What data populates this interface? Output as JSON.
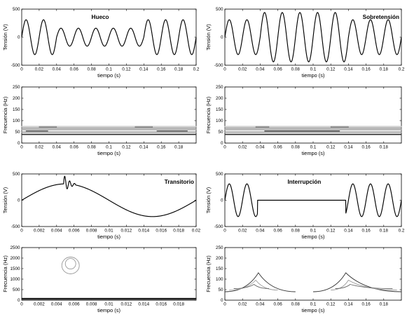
{
  "chart_data": [
    {
      "id": "hueco-time",
      "type": "line",
      "title": "Hueco",
      "xlabel": "tiempo (s)",
      "ylabel": "Tensión (V)",
      "xlim": [
        0,
        0.2
      ],
      "ylim": [
        -500,
        500
      ],
      "xticks": [
        "0",
        "0.02",
        "0.04",
        "0.06",
        "0.08",
        "0.1",
        "0.12",
        "0.14",
        "0.16",
        "0.18",
        "0.2"
      ],
      "yticks": [
        "-500",
        "0",
        "500"
      ],
      "series": [
        {
          "frequency_hz": 50,
          "segments": [
            {
              "x": [
                0,
                0.04
              ],
              "amplitude": 311
            },
            {
              "x": [
                0.04,
                0.14
              ],
              "amplitude": 160
            },
            {
              "x": [
                0.14,
                0.2
              ],
              "amplitude": 311
            }
          ]
        }
      ]
    },
    {
      "id": "sobretension-time",
      "type": "line",
      "title": "Sobretensión",
      "xlabel": "tiempo (s)",
      "ylabel": "Tensión (V)",
      "xlim": [
        0,
        0.2
      ],
      "ylim": [
        -500,
        500
      ],
      "xticks": [
        "0",
        "0.02",
        "0.04",
        "0.06",
        "0.08",
        "0.1",
        "0.12",
        "0.14",
        "0.16",
        "0.18",
        "0.2"
      ],
      "yticks": [
        "-500",
        "0",
        "500"
      ],
      "series": [
        {
          "frequency_hz": 50,
          "segments": [
            {
              "x": [
                0,
                0.04
              ],
              "amplitude": 311
            },
            {
              "x": [
                0.04,
                0.14
              ],
              "amplitude": 440
            },
            {
              "x": [
                0.14,
                0.2
              ],
              "amplitude": 311
            }
          ]
        }
      ]
    },
    {
      "id": "hueco-tf",
      "type": "contour",
      "title": "",
      "xlabel": "tiempo (s)",
      "ylabel": "Frecuencia (Hz)",
      "xlim": [
        0,
        0.2
      ],
      "ylim": [
        0,
        2500
      ],
      "xticks": [
        "0",
        "0.02",
        "0.04",
        "0.06",
        "0.08",
        "0.1",
        "0.12",
        "0.14",
        "0.16",
        "0.18"
      ],
      "yticks": [
        "0",
        "50",
        "100",
        "150",
        "200",
        "250"
      ],
      "contours": [
        {
          "x": [
            0,
            0.2
          ],
          "y": [
            66,
            68
          ],
          "color": "#999999"
        },
        {
          "x": [
            0,
            0.2
          ],
          "y": [
            58,
            61
          ],
          "color": "#aaaaaa"
        },
        {
          "x": [
            0,
            0.2
          ],
          "y": [
            48,
            50
          ],
          "color": "#999999"
        },
        {
          "x": [
            0,
            0.2
          ],
          "y": [
            38,
            40
          ],
          "color": "#333333"
        },
        {
          "x": [
            0,
            0.2
          ],
          "y": [
            73,
            75
          ],
          "color": "#cccccc"
        },
        {
          "x": [
            0.02,
            0.04
          ],
          "y": [
            70,
            74
          ],
          "color": "#888888"
        },
        {
          "x": [
            0.13,
            0.15
          ],
          "y": [
            70,
            74
          ],
          "color": "#888888"
        },
        {
          "x": [
            0.005,
            0.03
          ],
          "y": [
            53,
            55
          ],
          "color": "#777777"
        },
        {
          "x": [
            0.155,
            0.19
          ],
          "y": [
            53,
            55
          ],
          "color": "#777777"
        }
      ]
    },
    {
      "id": "sobretension-tf",
      "type": "contour",
      "title": "",
      "xlabel": "tiempo (s)",
      "ylabel": "Frecuencia (Hz)",
      "xlim": [
        0,
        0.2
      ],
      "ylim": [
        0,
        2500
      ],
      "xticks": [
        "0",
        "0.02",
        "0.04",
        "0.06",
        "0.08",
        "0.1",
        "0.12",
        "0.14",
        "0.16",
        "0.18"
      ],
      "yticks": [
        "0",
        "50",
        "100",
        "150",
        "200",
        "250"
      ],
      "contours": [
        {
          "x": [
            0,
            0.2
          ],
          "y": [
            66,
            68
          ],
          "color": "#999999"
        },
        {
          "x": [
            0,
            0.2
          ],
          "y": [
            58,
            61
          ],
          "color": "#aaaaaa"
        },
        {
          "x": [
            0,
            0.2
          ],
          "y": [
            48,
            50
          ],
          "color": "#999999"
        },
        {
          "x": [
            0,
            0.2
          ],
          "y": [
            38,
            40
          ],
          "color": "#333333"
        },
        {
          "x": [
            0,
            0.2
          ],
          "y": [
            73,
            75
          ],
          "color": "#cccccc"
        },
        {
          "x": [
            0.035,
            0.05
          ],
          "y": [
            70,
            74
          ],
          "color": "#888888"
        },
        {
          "x": [
            0.12,
            0.14
          ],
          "y": [
            70,
            74
          ],
          "color": "#888888"
        },
        {
          "x": [
            0.045,
            0.13
          ],
          "y": [
            53,
            55
          ],
          "color": "#666666"
        }
      ]
    },
    {
      "id": "transitorio-time",
      "type": "line",
      "title": "Transitorio",
      "xlabel": "tiempo (s)",
      "ylabel": "Tensión (V)",
      "xlim": [
        0,
        0.02
      ],
      "ylim": [
        -500,
        500
      ],
      "xticks": [
        "0",
        "0.002",
        "0.004",
        "0.006",
        "0.008",
        "0.01",
        "0.012",
        "0.014",
        "0.016",
        "0.018",
        "0.02"
      ],
      "yticks": [
        "-500",
        "0",
        "500"
      ],
      "series": [
        {
          "frequency_hz": 50,
          "amplitude": 311,
          "transient": {
            "x": [
              0.0048,
              0.0062
            ],
            "peak": 480,
            "dip": 140
          }
        }
      ]
    },
    {
      "id": "interrupcion-time",
      "type": "line",
      "title": "Interrupción",
      "xlabel": "tiempo (s)",
      "ylabel": "Tensión (V)",
      "xlim": [
        0,
        0.2
      ],
      "ylim": [
        -500,
        500
      ],
      "xticks": [
        "0",
        "0.02",
        "0.04",
        "0.06",
        "0.08",
        "0.1",
        "0.12",
        "0.14",
        "0.16",
        "0.18",
        "0.2"
      ],
      "yticks": [
        "-500",
        "0",
        "500"
      ],
      "series": [
        {
          "frequency_hz": 50,
          "segments": [
            {
              "x": [
                0,
                0.037
              ],
              "amplitude": 311
            },
            {
              "x": [
                0.037,
                0.137
              ],
              "amplitude": 0,
              "level": 0
            },
            {
              "x": [
                0.137,
                0.2
              ],
              "amplitude": 311
            }
          ]
        }
      ]
    },
    {
      "id": "transitorio-tf",
      "type": "contour",
      "title": "",
      "xlabel": "tiempo (s)",
      "ylabel": "Frecuencia (Hz)",
      "xlim": [
        0,
        0.02
      ],
      "ylim": [
        0,
        2500
      ],
      "xticks": [
        "0",
        "0.002",
        "0.004",
        "0.006",
        "0.008",
        "0.01",
        "0.012",
        "0.014",
        "0.016",
        "0.018"
      ],
      "yticks": [
        "0",
        "500",
        "1000",
        "1500",
        "2000",
        "2500"
      ],
      "contours": [
        {
          "x": [
            0.0046,
            0.0066
          ],
          "y": [
            1250,
            2050
          ],
          "color": "#999999"
        },
        {
          "x": [
            0.005,
            0.0062
          ],
          "y": [
            1480,
            1980
          ],
          "color": "#999999"
        },
        {
          "x": [
            0,
            0.02
          ],
          "y": [
            70,
            90
          ],
          "color": "#000000"
        },
        {
          "x": [
            0,
            0.02
          ],
          "y": [
            30,
            50
          ],
          "color": "#444444"
        }
      ]
    },
    {
      "id": "interrupcion-tf",
      "type": "contour",
      "title": "",
      "xlabel": "tiempo (s)",
      "ylabel": "Frecuencia (Hz)",
      "xlim": [
        0,
        0.2
      ],
      "ylim": [
        0,
        2500
      ],
      "xticks": [
        "0",
        "0.02",
        "0.04",
        "0.06",
        "0.08",
        "0.1",
        "0.12",
        "0.14",
        "0.16",
        "0.18"
      ],
      "yticks": [
        "0",
        "50",
        "100",
        "150",
        "200",
        "250"
      ],
      "contours": [
        {
          "x": [
            0,
            0.08
          ],
          "y": [
            40,
            130
          ],
          "color": "#333333",
          "peak_x": 0.038,
          "shape": "left"
        },
        {
          "x": [
            0.1,
            0.2
          ],
          "y": [
            40,
            130
          ],
          "color": "#333333",
          "peak_x": 0.137,
          "shape": "right"
        },
        {
          "x": [
            0.005,
            0.06
          ],
          "y": [
            48,
            95
          ],
          "color": "#999999",
          "peak_x": 0.035,
          "shape": "left"
        },
        {
          "x": [
            0.12,
            0.195
          ],
          "y": [
            48,
            95
          ],
          "color": "#999999",
          "peak_x": 0.14,
          "shape": "right"
        },
        {
          "x": [
            0.01,
            0.05
          ],
          "y": [
            55,
            75
          ],
          "color": "#666666",
          "peak_x": 0.033,
          "shape": "left"
        },
        {
          "x": [
            0.125,
            0.19
          ],
          "y": [
            55,
            75
          ],
          "color": "#666666",
          "peak_x": 0.142,
          "shape": "right"
        }
      ]
    }
  ]
}
